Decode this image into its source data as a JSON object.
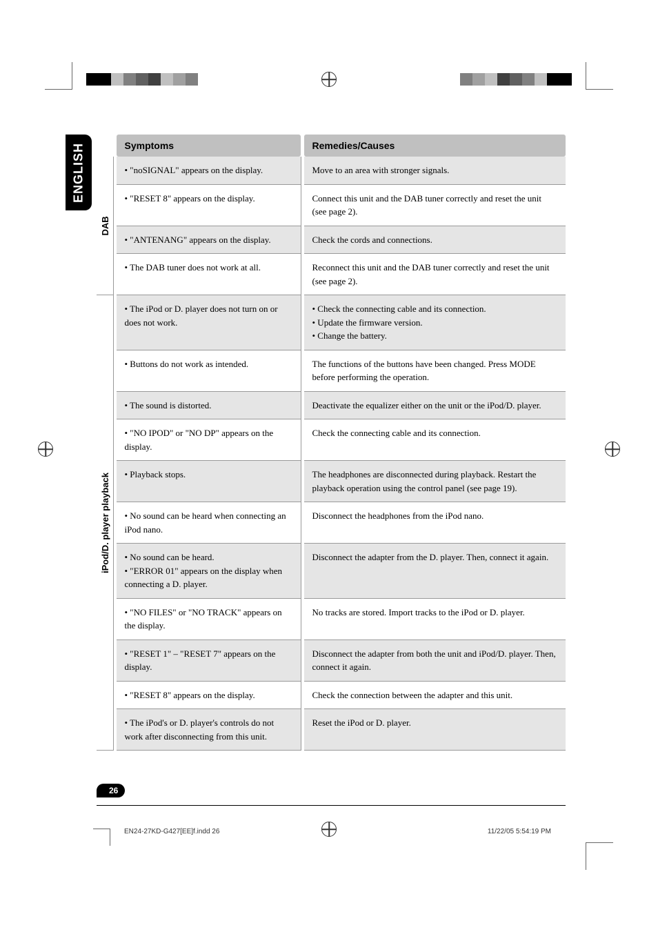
{
  "colors": {
    "header_bg": "#c0c0c0",
    "shaded_row_bg": "#e5e5e5",
    "border": "#999999",
    "tab_bg": "#000000",
    "tab_text": "#ffffff",
    "page_bg": "#ffffff",
    "text": "#000000"
  },
  "typography": {
    "body_font": "Georgia, Times New Roman, serif",
    "label_font": "Arial, sans-serif",
    "body_size_pt": 10,
    "header_size_pt": 11,
    "tab_size_pt": 14
  },
  "language_tab": "ENGLISH",
  "headers": {
    "symptoms": "Symptoms",
    "remedies": "Remedies/Causes"
  },
  "sections": [
    {
      "label": "DAB",
      "rows": [
        {
          "shaded": true,
          "symptom": "• \"noSIGNAL\" appears on the display.",
          "remedy": "Move to an area with stronger signals."
        },
        {
          "shaded": false,
          "symptom": "• \"RESET 8\" appears on the display.",
          "remedy": "Connect this unit and the DAB tuner correctly and reset the unit (see page 2)."
        },
        {
          "shaded": true,
          "symptom": "• \"ANTENANG\" appears on the display.",
          "remedy": "Check the cords and connections."
        },
        {
          "shaded": false,
          "symptom": "• The DAB tuner does not work at all.",
          "remedy": "Reconnect this unit and the DAB tuner correctly and reset the unit (see page 2)."
        }
      ]
    },
    {
      "label": "iPod/D. player playback",
      "rows": [
        {
          "shaded": true,
          "symptom": "• The iPod or D. player does not turn on or does not work.",
          "remedy": "• Check the connecting cable and its connection.\n• Update the firmware version.\n• Change the battery."
        },
        {
          "shaded": false,
          "symptom": "• Buttons do not work as intended.",
          "remedy": "The functions of the buttons have been changed. Press MODE before performing the operation."
        },
        {
          "shaded": true,
          "symptom": "• The sound is distorted.",
          "remedy": "Deactivate the equalizer either on the unit or the iPod/D. player."
        },
        {
          "shaded": false,
          "symptom": "• \"NO IPOD\" or \"NO DP\" appears on the display.",
          "remedy": "Check the connecting cable and its connection."
        },
        {
          "shaded": true,
          "symptom": "• Playback stops.",
          "remedy": "The headphones are disconnected during playback. Restart the playback operation using the control panel (see page 19)."
        },
        {
          "shaded": false,
          "symptom": "• No sound can be heard when connecting an iPod nano.",
          "remedy": "Disconnect the headphones from the iPod nano."
        },
        {
          "shaded": true,
          "symptom": "• No sound can be heard.\n• \"ERROR 01\" appears on the display when connecting a D. player.",
          "remedy": "Disconnect the adapter from the D. player. Then, connect it again."
        },
        {
          "shaded": false,
          "symptom": "• \"NO FILES\" or \"NO TRACK\" appears on the display.",
          "remedy": "No tracks are stored. Import tracks to the iPod or D. player."
        },
        {
          "shaded": true,
          "symptom": "• \"RESET 1\" – \"RESET 7\" appears on the display.",
          "remedy": "Disconnect the adapter from both the unit and iPod/D. player. Then, connect it again."
        },
        {
          "shaded": false,
          "symptom": "• \"RESET 8\" appears on the display.",
          "remedy": "Check the connection between the adapter and this unit."
        },
        {
          "shaded": true,
          "symptom": "• The iPod's or D. player's controls do not work after disconnecting from this unit.",
          "remedy": "Reset the iPod or D. player."
        }
      ]
    }
  ],
  "page_number": "26",
  "footer": {
    "left": "EN24-27KD-G427[EE]f.indd   26",
    "right": "11/22/05   5:54:19 PM"
  },
  "registration_colors": {
    "top_left": [
      "#000000",
      "#000000",
      "#c0c0c0",
      "#808080",
      "#606060",
      "#404040",
      "#c0c0c0",
      "#a0a0a0",
      "#808080"
    ],
    "top_right": [
      "#808080",
      "#a0a0a0",
      "#c0c0c0",
      "#404040",
      "#606060",
      "#808080",
      "#c0c0c0",
      "#000000",
      "#000000"
    ]
  }
}
